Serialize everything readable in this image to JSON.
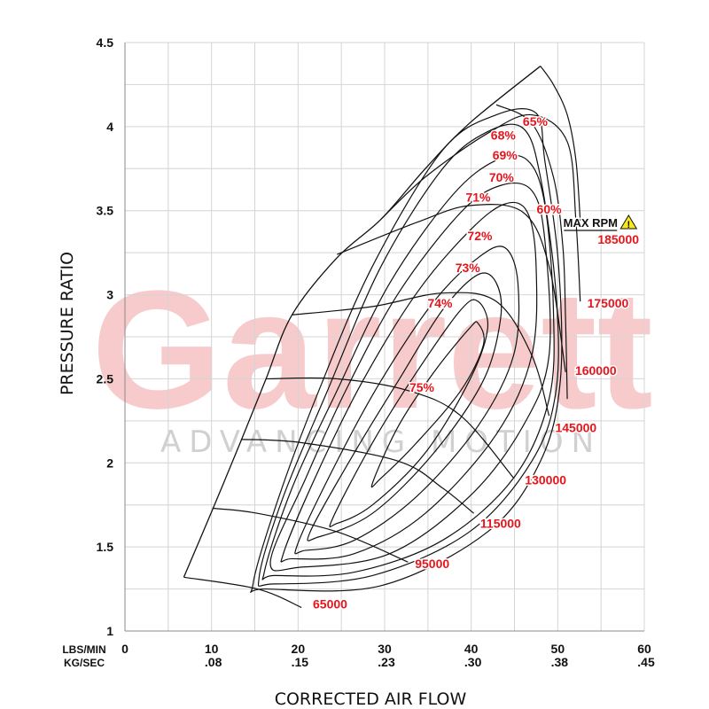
{
  "chart_data": {
    "type": "line",
    "title": "",
    "xlabel": "CORRECTED AIR FLOW",
    "ylabel": "PRESSURE RATIO",
    "xlim": [
      0,
      60
    ],
    "ylim": [
      1,
      4.5
    ],
    "grid": true,
    "x_units": [
      "LBS/MIN",
      "KG/SEC"
    ],
    "x_ticks": [
      0,
      10,
      20,
      30,
      40,
      50,
      60
    ],
    "x_ticks_kg": [
      "",
      ".08",
      ".15",
      ".23",
      ".30",
      ".38",
      ".45"
    ],
    "y_ticks": [
      "1",
      "1.5",
      "2",
      "2.5",
      "3",
      "3.5",
      "4",
      "4.5"
    ],
    "surge_line": [
      [
        6.8,
        1.32
      ],
      [
        10.1,
        1.72
      ],
      [
        13.4,
        2.13
      ],
      [
        16.3,
        2.5
      ],
      [
        19.3,
        2.88
      ],
      [
        24.5,
        3.22
      ],
      [
        29.6,
        3.45
      ],
      [
        34.7,
        3.75
      ],
      [
        39.8,
        4.02
      ],
      [
        48.0,
        4.36
      ]
    ],
    "speed_lines": [
      {
        "label": "65000",
        "label_at": [
          23.7,
          1.16
        ],
        "points": [
          [
            6.8,
            1.32
          ],
          [
            15.3,
            1.25
          ],
          [
            20.4,
            1.14
          ]
        ]
      },
      {
        "label": "95000",
        "label_at": [
          35.5,
          1.4
        ],
        "points": [
          [
            10.1,
            1.73
          ],
          [
            15.3,
            1.7
          ],
          [
            24.5,
            1.59
          ],
          [
            32.7,
            1.41
          ]
        ]
      },
      {
        "label": "115000",
        "label_at": [
          43.4,
          1.64
        ],
        "points": [
          [
            13.4,
            2.14
          ],
          [
            20.4,
            2.12
          ],
          [
            31.6,
            2.01
          ],
          [
            36.7,
            1.85
          ],
          [
            40.3,
            1.7
          ]
        ]
      },
      {
        "label": "130000",
        "label_at": [
          48.6,
          1.9
        ],
        "points": [
          [
            16.3,
            2.5
          ],
          [
            24.5,
            2.5
          ],
          [
            32.7,
            2.43
          ],
          [
            38.8,
            2.28
          ],
          [
            44.9,
            1.91
          ]
        ]
      },
      {
        "label": "145000",
        "label_at": [
          52.1,
          2.21
        ],
        "points": [
          [
            19.3,
            2.88
          ],
          [
            28.6,
            2.93
          ],
          [
            36.7,
            3.01
          ],
          [
            42.9,
            2.96
          ],
          [
            47.0,
            2.64
          ],
          [
            49.0,
            2.28
          ]
        ]
      },
      {
        "label": "160000",
        "label_at": [
          54.4,
          2.55
        ],
        "points": [
          [
            24.5,
            3.24
          ],
          [
            33.7,
            3.43
          ],
          [
            39.8,
            3.53
          ],
          [
            46.0,
            3.49
          ],
          [
            49.0,
            3.17
          ],
          [
            50.9,
            2.54
          ]
        ]
      },
      {
        "label": "175000",
        "label_at": [
          55.8,
          2.95
        ],
        "points": [
          [
            29.6,
            3.45
          ],
          [
            34.7,
            3.7
          ],
          [
            41.9,
            3.96
          ],
          [
            47.0,
            4.07
          ],
          [
            51.1,
            3.91
          ],
          [
            52.1,
            3.44
          ],
          [
            52.6,
            2.96
          ]
        ]
      },
      {
        "label": "185000",
        "label_at": [
          57.0,
          3.33
        ],
        "points": [
          [
            48.0,
            4.36
          ],
          [
            49.5,
            4.25
          ],
          [
            51.1,
            4.07
          ],
          [
            52.1,
            3.8
          ],
          [
            52.6,
            3.44
          ]
        ]
      }
    ],
    "max_rpm": {
      "label": "MAX RPM",
      "label_at": [
        54.4,
        3.43
      ],
      "icon": "warning-icon",
      "icon_color": "#f5e81c"
    },
    "efficiency_islands": [
      {
        "label": "75%",
        "label_at": [
          34.3,
          2.45
        ],
        "closed": true,
        "points": [
          [
            28.6,
            1.88
          ],
          [
            31.6,
            2.22
          ],
          [
            35.7,
            2.54
          ],
          [
            39.8,
            2.8
          ],
          [
            40.8,
            2.83
          ],
          [
            41.4,
            2.7
          ],
          [
            38.8,
            2.43
          ],
          [
            33.7,
            2.12
          ],
          [
            29.6,
            1.91
          ]
        ]
      },
      {
        "label": "74%",
        "label_at": [
          36.4,
          2.95
        ],
        "closed": true,
        "points": [
          [
            24.0,
            1.67
          ],
          [
            28.6,
            2.12
          ],
          [
            33.7,
            2.54
          ],
          [
            38.8,
            2.91
          ],
          [
            40.8,
            2.96
          ],
          [
            41.9,
            2.8
          ],
          [
            39.8,
            2.49
          ],
          [
            34.7,
            2.06
          ],
          [
            28.6,
            1.75
          ],
          [
            24.5,
            1.64
          ]
        ]
      },
      {
        "label": "73%",
        "label_at": [
          39.6,
          3.16
        ],
        "closed": true,
        "points": [
          [
            21.4,
            1.59
          ],
          [
            26.5,
            2.06
          ],
          [
            31.6,
            2.49
          ],
          [
            36.7,
            2.91
          ],
          [
            40.8,
            3.12
          ],
          [
            42.9,
            3.07
          ],
          [
            43.4,
            2.86
          ],
          [
            41.4,
            2.49
          ],
          [
            35.7,
            2.06
          ],
          [
            28.6,
            1.7
          ],
          [
            22.4,
            1.56
          ]
        ]
      },
      {
        "label": "72%",
        "label_at": [
          41.0,
          3.35
        ],
        "closed": true,
        "points": [
          [
            19.9,
            1.51
          ],
          [
            24.5,
            2.01
          ],
          [
            29.6,
            2.49
          ],
          [
            35.7,
            2.96
          ],
          [
            40.8,
            3.22
          ],
          [
            43.9,
            3.28
          ],
          [
            45.4,
            3.07
          ],
          [
            44.9,
            2.64
          ],
          [
            40.8,
            2.22
          ],
          [
            33.7,
            1.8
          ],
          [
            26.5,
            1.54
          ],
          [
            20.9,
            1.48
          ]
        ]
      },
      {
        "label": "71%",
        "label_at": [
          40.8,
          3.58
        ],
        "closed": true,
        "points": [
          [
            18.3,
            1.46
          ],
          [
            22.4,
            1.96
          ],
          [
            27.5,
            2.49
          ],
          [
            33.7,
            3.01
          ],
          [
            39.8,
            3.38
          ],
          [
            43.9,
            3.54
          ],
          [
            46.5,
            3.49
          ],
          [
            47.5,
            3.17
          ],
          [
            47.0,
            2.64
          ],
          [
            42.9,
            2.17
          ],
          [
            34.7,
            1.7
          ],
          [
            26.5,
            1.46
          ],
          [
            19.3,
            1.43
          ]
        ]
      },
      {
        "label": "70%",
        "label_at": [
          43.5,
          3.7
        ],
        "closed": true,
        "points": [
          [
            16.8,
            1.41
          ],
          [
            20.9,
            1.91
          ],
          [
            25.5,
            2.43
          ],
          [
            31.6,
            3.01
          ],
          [
            38.8,
            3.49
          ],
          [
            43.4,
            3.65
          ],
          [
            47.0,
            3.62
          ],
          [
            48.5,
            3.33
          ],
          [
            49.0,
            2.64
          ],
          [
            46.0,
            2.22
          ],
          [
            39.8,
            1.8
          ],
          [
            30.6,
            1.46
          ],
          [
            20.4,
            1.38
          ]
        ]
      },
      {
        "label": "69%",
        "label_at": [
          43.9,
          3.83
        ],
        "closed": true,
        "points": [
          [
            16.1,
            1.35
          ],
          [
            19.3,
            1.85
          ],
          [
            24.5,
            2.43
          ],
          [
            30.6,
            3.07
          ],
          [
            37.8,
            3.59
          ],
          [
            42.9,
            3.8
          ],
          [
            46.5,
            3.8
          ],
          [
            48.5,
            3.54
          ],
          [
            49.5,
            2.91
          ],
          [
            49.0,
            2.38
          ],
          [
            44.9,
            1.91
          ],
          [
            36.7,
            1.54
          ],
          [
            26.5,
            1.35
          ],
          [
            17.3,
            1.33
          ]
        ]
      },
      {
        "label": "68%",
        "label_at": [
          43.7,
          3.95
        ],
        "closed": true,
        "points": [
          [
            15.5,
            1.32
          ],
          [
            18.3,
            1.8
          ],
          [
            23.4,
            2.43
          ],
          [
            29.6,
            3.17
          ],
          [
            36.7,
            3.75
          ],
          [
            41.9,
            3.97
          ],
          [
            46.0,
            3.99
          ],
          [
            48.0,
            3.7
          ],
          [
            49.8,
            3.01
          ],
          [
            49.8,
            2.43
          ],
          [
            47.0,
            2.01
          ],
          [
            39.8,
            1.59
          ],
          [
            28.6,
            1.33
          ],
          [
            17.3,
            1.28
          ]
        ]
      },
      {
        "label": "65%",
        "label_at": [
          47.4,
          4.03
        ],
        "closed": true,
        "points": [
          [
            14.8,
            1.28
          ],
          [
            17.8,
            1.8
          ],
          [
            22.4,
            2.43
          ],
          [
            28.6,
            3.17
          ],
          [
            36.7,
            3.86
          ],
          [
            42.9,
            4.07
          ],
          [
            47.5,
            4.08
          ],
          [
            48.5,
            3.8
          ],
          [
            50.1,
            3.17
          ],
          [
            50.3,
            2.49
          ],
          [
            48.0,
            2.01
          ],
          [
            41.9,
            1.59
          ],
          [
            29.6,
            1.27
          ],
          [
            16.3,
            1.25
          ]
        ]
      },
      {
        "label": "60%",
        "label_at": [
          49.0,
          3.51
        ],
        "closed": false,
        "points": [
          [
            42.9,
            4.13
          ],
          [
            47.0,
            4.02
          ],
          [
            49.5,
            3.7
          ],
          [
            50.6,
            3.28
          ],
          [
            50.9,
            2.86
          ],
          [
            51.1,
            2.38
          ]
        ]
      }
    ],
    "colors": {
      "lines": "#111111",
      "labels": "#e8141b",
      "grid": "#d4d4d4",
      "watermark": "#f2a9a9"
    }
  },
  "watermark": {
    "brand": "Garrett",
    "tagline": "ADVANCING MOTION"
  }
}
